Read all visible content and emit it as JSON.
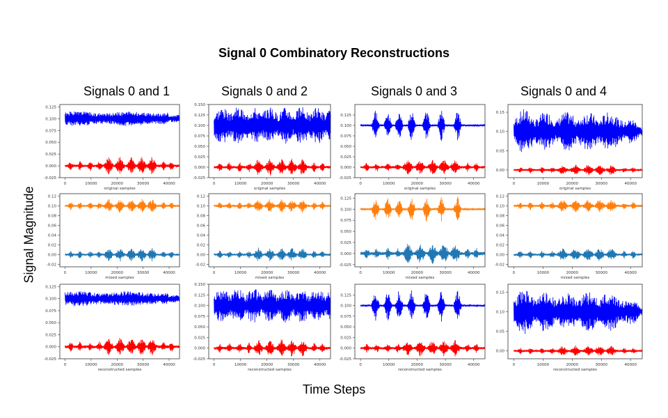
{
  "figure": {
    "title": "Signal 0 Combinatory Reconstructions",
    "ylabel": "Signal Magnitude",
    "xlabel": "Time Steps",
    "columns": [
      "Signals 0 and 1",
      "Signals 0 and 2",
      "Signals 0 and 3",
      "Signals 0 and 4"
    ]
  },
  "colors": {
    "blue": "#0000ff",
    "red": "#ff0000",
    "orange": "#ff7f0e",
    "steelblue": "#1f77b4"
  },
  "chart_data": [
    {
      "type": "line",
      "column": 1,
      "row": 1,
      "xlabel": "original samples",
      "xlim": [
        -2000,
        44000
      ],
      "ylim": [
        -0.025,
        0.13
      ],
      "xticks": [
        0,
        10000,
        20000,
        30000,
        40000
      ],
      "yticks": [
        "-0.025",
        "0.000",
        "0.025",
        "0.050",
        "0.075",
        "0.100",
        "0.125"
      ],
      "series": [
        {
          "color": "blue",
          "baseline": 0.1,
          "amplitude": 0.018,
          "pattern": "a",
          "seed": 1
        },
        {
          "color": "red",
          "baseline": 0.0,
          "amplitude": 0.02,
          "pattern": "s",
          "seed": 2
        }
      ]
    },
    {
      "type": "line",
      "column": 2,
      "row": 1,
      "xlabel": "original samples",
      "xlim": [
        -2000,
        44000
      ],
      "ylim": [
        -0.025,
        0.15
      ],
      "xticks": [
        0,
        10000,
        20000,
        30000,
        40000
      ],
      "yticks": [
        "-0.025",
        "0.000",
        "0.025",
        "0.050",
        "0.075",
        "0.100",
        "0.125",
        "0.150"
      ],
      "series": [
        {
          "color": "blue",
          "baseline": 0.1,
          "amplitude": 0.045,
          "pattern": "b",
          "seed": 3
        },
        {
          "color": "red",
          "baseline": 0.0,
          "amplitude": 0.022,
          "pattern": "s",
          "seed": 4
        }
      ]
    },
    {
      "type": "line",
      "column": 3,
      "row": 1,
      "xlabel": "original samples",
      "xlim": [
        -2000,
        44000
      ],
      "ylim": [
        -0.025,
        0.15
      ],
      "xticks": [
        0,
        10000,
        20000,
        30000,
        40000
      ],
      "yticks": [
        "-0.025",
        "0.000",
        "0.025",
        "0.050",
        "0.075",
        "0.100",
        "0.125"
      ],
      "series": [
        {
          "color": "blue",
          "baseline": 0.1,
          "amplitude": 0.04,
          "pattern": "c",
          "seed": 5
        },
        {
          "color": "red",
          "baseline": 0.0,
          "amplitude": 0.02,
          "pattern": "s",
          "seed": 6
        }
      ]
    },
    {
      "type": "line",
      "column": 4,
      "row": 1,
      "xlabel": "original samples",
      "xlim": [
        -2000,
        44000
      ],
      "ylim": [
        -0.02,
        0.17
      ],
      "xticks": [
        0,
        10000,
        20000,
        30000,
        40000
      ],
      "yticks": [
        "0.00",
        "0.05",
        "0.10",
        "0.15"
      ],
      "series": [
        {
          "color": "blue",
          "baseline": 0.1,
          "amplitude": 0.06,
          "pattern": "d",
          "seed": 7
        },
        {
          "color": "red",
          "baseline": 0.0,
          "amplitude": 0.015,
          "pattern": "s",
          "seed": 8
        }
      ]
    },
    {
      "type": "line",
      "column": 1,
      "row": 2,
      "xlabel": "mixed samples",
      "xlim": [
        -2000,
        44000
      ],
      "ylim": [
        -0.025,
        0.125
      ],
      "xticks": [
        0,
        10000,
        20000,
        30000,
        40000
      ],
      "yticks": [
        "-0.02",
        "0.00",
        "0.02",
        "0.04",
        "0.06",
        "0.08",
        "0.10",
        "0.12"
      ],
      "series": [
        {
          "color": "orange",
          "baseline": 0.1,
          "amplitude": 0.015,
          "pattern": "s",
          "seed": 9
        },
        {
          "color": "steelblue",
          "baseline": 0.0,
          "amplitude": 0.015,
          "pattern": "s",
          "seed": 10
        }
      ]
    },
    {
      "type": "line",
      "column": 2,
      "row": 2,
      "xlabel": "mixed samples",
      "xlim": [
        -2000,
        44000
      ],
      "ylim": [
        -0.025,
        0.125
      ],
      "xticks": [
        0,
        10000,
        20000,
        30000,
        40000
      ],
      "yticks": [
        "-0.02",
        "0.00",
        "0.02",
        "0.04",
        "0.06",
        "0.08",
        "0.10",
        "0.12"
      ],
      "series": [
        {
          "color": "orange",
          "baseline": 0.1,
          "amplitude": 0.015,
          "pattern": "s",
          "seed": 11
        },
        {
          "color": "steelblue",
          "baseline": 0.0,
          "amplitude": 0.015,
          "pattern": "s",
          "seed": 12
        }
      ]
    },
    {
      "type": "line",
      "column": 3,
      "row": 2,
      "xlabel": "mixed samples",
      "xlim": [
        -2000,
        44000
      ],
      "ylim": [
        -0.03,
        0.135
      ],
      "xticks": [
        0,
        10000,
        20000,
        30000,
        40000
      ],
      "yticks": [
        "-0.025",
        "0.000",
        "0.025",
        "0.050",
        "0.075",
        "0.100",
        "0.125"
      ],
      "series": [
        {
          "color": "orange",
          "baseline": 0.1,
          "amplitude": 0.03,
          "pattern": "c",
          "seed": 13
        },
        {
          "color": "steelblue",
          "baseline": 0.0,
          "amplitude": 0.025,
          "pattern": "s",
          "seed": 14
        }
      ]
    },
    {
      "type": "line",
      "column": 4,
      "row": 2,
      "xlabel": "mixed samples",
      "xlim": [
        -2000,
        44000
      ],
      "ylim": [
        -0.025,
        0.125
      ],
      "xticks": [
        0,
        10000,
        20000,
        30000,
        40000
      ],
      "yticks": [
        "-0.02",
        "0.00",
        "0.02",
        "0.04",
        "0.06",
        "0.08",
        "0.10",
        "0.12"
      ],
      "series": [
        {
          "color": "orange",
          "baseline": 0.1,
          "amplitude": 0.015,
          "pattern": "s",
          "seed": 15
        },
        {
          "color": "steelblue",
          "baseline": 0.0,
          "amplitude": 0.015,
          "pattern": "s",
          "seed": 16
        }
      ]
    },
    {
      "type": "line",
      "column": 1,
      "row": 3,
      "xlabel": "reconstructed samples",
      "xlim": [
        -2000,
        44000
      ],
      "ylim": [
        -0.025,
        0.13
      ],
      "xticks": [
        0,
        10000,
        20000,
        30000,
        40000
      ],
      "yticks": [
        "-0.025",
        "0.000",
        "0.025",
        "0.050",
        "0.075",
        "0.100",
        "0.125"
      ],
      "series": [
        {
          "color": "blue",
          "baseline": 0.1,
          "amplitude": 0.018,
          "pattern": "a",
          "seed": 17
        },
        {
          "color": "red",
          "baseline": 0.0,
          "amplitude": 0.02,
          "pattern": "s",
          "seed": 18
        }
      ]
    },
    {
      "type": "line",
      "column": 2,
      "row": 3,
      "xlabel": "reconstructed samples",
      "xlim": [
        -2000,
        44000
      ],
      "ylim": [
        -0.025,
        0.15
      ],
      "xticks": [
        0,
        10000,
        20000,
        30000,
        40000
      ],
      "yticks": [
        "-0.025",
        "0.000",
        "0.025",
        "0.050",
        "0.075",
        "0.100",
        "0.125",
        "0.150"
      ],
      "series": [
        {
          "color": "blue",
          "baseline": 0.1,
          "amplitude": 0.04,
          "pattern": "b",
          "seed": 19
        },
        {
          "color": "red",
          "baseline": 0.0,
          "amplitude": 0.022,
          "pattern": "s",
          "seed": 20
        }
      ]
    },
    {
      "type": "line",
      "column": 3,
      "row": 3,
      "xlabel": "reconstructed samples",
      "xlim": [
        -2000,
        44000
      ],
      "ylim": [
        -0.025,
        0.15
      ],
      "xticks": [
        0,
        10000,
        20000,
        30000,
        40000
      ],
      "yticks": [
        "-0.025",
        "0.000",
        "0.025",
        "0.050",
        "0.075",
        "0.100",
        "0.125"
      ],
      "series": [
        {
          "color": "blue",
          "baseline": 0.1,
          "amplitude": 0.04,
          "pattern": "c",
          "seed": 21
        },
        {
          "color": "red",
          "baseline": 0.0,
          "amplitude": 0.02,
          "pattern": "s",
          "seed": 22
        }
      ]
    },
    {
      "type": "line",
      "column": 4,
      "row": 3,
      "xlabel": "reconstructed samples",
      "xlim": [
        -2000,
        44000
      ],
      "ylim": [
        -0.02,
        0.17
      ],
      "xticks": [
        0,
        10000,
        20000,
        30000,
        40000
      ],
      "yticks": [
        "0.00",
        "0.05",
        "0.10",
        "0.15"
      ],
      "series": [
        {
          "color": "blue",
          "baseline": 0.1,
          "amplitude": 0.06,
          "pattern": "d",
          "seed": 23
        },
        {
          "color": "red",
          "baseline": 0.0,
          "amplitude": 0.015,
          "pattern": "s",
          "seed": 24
        }
      ]
    }
  ]
}
